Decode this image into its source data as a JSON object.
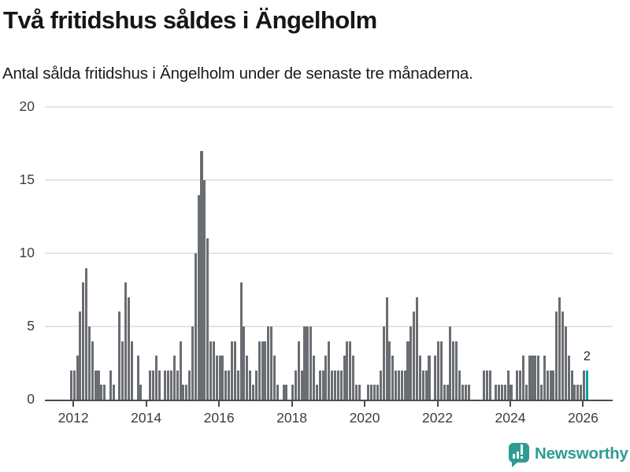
{
  "header": {
    "title": "Två fritidshus såldes i Ängelholm",
    "subtitle": "Antal sålda fritidshus i Ängelholm under de senaste tre månaderna."
  },
  "chart_data": {
    "type": "bar",
    "title": "Två fritidshus såldes i Ängelholm",
    "subtitle": "Antal sålda fritidshus i Ängelholm under de senaste tre månaderna.",
    "start_month": "2011-12",
    "end_month": "2026-02",
    "values": [
      2,
      2,
      3,
      6,
      8,
      9,
      5,
      4,
      2,
      2,
      1,
      1,
      0,
      2,
      1,
      0,
      6,
      4,
      8,
      7,
      4,
      0,
      3,
      1,
      0,
      0,
      2,
      2,
      3,
      2,
      0,
      2,
      2,
      2,
      3,
      2,
      4,
      1,
      1,
      2,
      5,
      10,
      14,
      17,
      15,
      11,
      4,
      4,
      3,
      3,
      3,
      2,
      2,
      4,
      4,
      2,
      8,
      5,
      3,
      2,
      1,
      2,
      4,
      4,
      4,
      5,
      5,
      3,
      1,
      0,
      1,
      1,
      0,
      1,
      2,
      4,
      2,
      5,
      5,
      5,
      3,
      1,
      2,
      2,
      3,
      4,
      2,
      2,
      2,
      2,
      3,
      4,
      4,
      3,
      1,
      1,
      0,
      0,
      1,
      1,
      1,
      1,
      2,
      5,
      7,
      4,
      3,
      2,
      2,
      2,
      2,
      4,
      5,
      6,
      7,
      3,
      2,
      2,
      3,
      0,
      3,
      4,
      4,
      1,
      1,
      5,
      4,
      4,
      2,
      1,
      1,
      1,
      0,
      0,
      0,
      0,
      2,
      2,
      2,
      0,
      1,
      1,
      1,
      1,
      2,
      1,
      0,
      2,
      2,
      3,
      1,
      3,
      3,
      3,
      3,
      1,
      3,
      2,
      2,
      2,
      6,
      7,
      6,
      5,
      3,
      2,
      1,
      1,
      1,
      2,
      2
    ],
    "highlight_last": true,
    "last_value": 2,
    "annotation_label": "2",
    "ylim": [
      0,
      20
    ],
    "yticks": [
      0,
      5,
      10,
      15,
      20
    ],
    "xticks": [
      "2012",
      "2014",
      "2016",
      "2018",
      "2020",
      "2022",
      "2024",
      "2026"
    ],
    "grid": "horizontal",
    "legend": "none",
    "bar_color": "#6a6d72",
    "highlight_color": "#0aa39a",
    "axis_color": "#4b4b4b",
    "gridline_color": "#e4e4e4"
  },
  "footer": {
    "brand": "Newsworthy",
    "brand_color": "#2e9c94"
  }
}
